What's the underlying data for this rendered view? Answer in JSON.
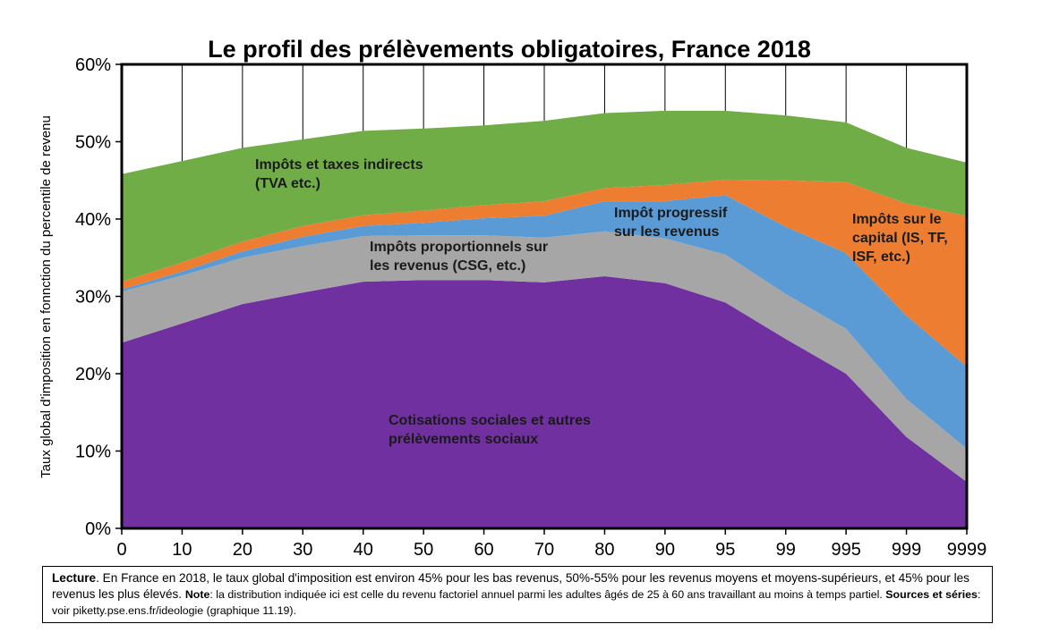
{
  "chart_data": {
    "type": "area",
    "stacked": true,
    "title": "Le profil des prélèvements obligatoires, France 2018",
    "ylabel": "Taux global d'imposition en fonnction du percentile de revenu",
    "xlabel": "",
    "categories": [
      "0",
      "10",
      "20",
      "30",
      "40",
      "50",
      "60",
      "70",
      "80",
      "90",
      "95",
      "99",
      "995",
      "999",
      "9999"
    ],
    "yticks": [
      "0%",
      "10%",
      "20%",
      "30%",
      "40%",
      "50%",
      "60%"
    ],
    "ylim": [
      0,
      60
    ],
    "grid": "vertical",
    "series": [
      {
        "name": "Cotisations sociales et autres prélèvements sociaux",
        "color": "#7030a0",
        "values": [
          24,
          26.5,
          29,
          30.5,
          31.9,
          32.1,
          32.1,
          31.8,
          32.6,
          31.7,
          29.2,
          24.5,
          20,
          11.8,
          6
        ]
      },
      {
        "name": "Impôts proportionnels sur les revenus (CSG, etc.)",
        "color": "#a6a6a6",
        "values": [
          6.6,
          6.2,
          6,
          6,
          5.9,
          5.8,
          5.8,
          5.8,
          5.8,
          5.8,
          6.2,
          5.8,
          5.8,
          4.9,
          4.3
        ]
      },
      {
        "name": "Impôt progressif sur les revenus",
        "color": "#5b9bd5",
        "values": [
          0.3,
          0.5,
          0.8,
          1.2,
          1.3,
          1.6,
          2.2,
          2.8,
          3.9,
          4.8,
          7.7,
          8.7,
          9.8,
          10.8,
          10.6
        ]
      },
      {
        "name": "Impôts sur le capital (IS, TF, ISF, etc.)",
        "color": "#ed7d31",
        "values": [
          1.0,
          1.2,
          1.3,
          1.4,
          1.4,
          1.6,
          1.7,
          1.9,
          1.7,
          2.1,
          2.0,
          6.0,
          9.2,
          14.5,
          19.5
        ]
      },
      {
        "name": "Impôts et taxes indirects (TVA etc.)",
        "color": "#70ad47",
        "values": [
          13.9,
          13.1,
          12.1,
          11.2,
          10.9,
          10.6,
          10.3,
          10.4,
          9.7,
          9.6,
          8.9,
          8.4,
          7.7,
          7.2,
          6.9
        ]
      }
    ],
    "annotations": {
      "indirect": [
        "Impôts et taxes indirects",
        "(TVA etc.)"
      ],
      "csg": [
        "Impôts proportionnels sur",
        "les revenus (CSG, etc.)"
      ],
      "progressive": [
        "Impôt progressif",
        "sur les revenus"
      ],
      "capital": [
        "Impôts sur le",
        "capital (IS, TF,",
        "ISF, etc.)"
      ],
      "social": [
        "Cotisations sociales et autres",
        "prélèvements sociaux"
      ]
    }
  },
  "note": {
    "lecture_label": "Lecture",
    "lecture_text": ". En France en 2018, le taux global d'imposition est environ 45% pour les bas revenus, 50%-55% pour les revenus moyens et moyens-supérieurs, et 45% pour les revenus les plus élevés. ",
    "note_label": "Note",
    "note_text": ": la distribution indiquée ici est celle du revenu factoriel annuel parmi les adultes âgés de 25 à 60 ans travaillant au moins à temps partiel. ",
    "sources_label": "Sources et séries",
    "sources_text": ": voir piketty.pse.ens.fr/ideologie (graphique 11.19)."
  }
}
